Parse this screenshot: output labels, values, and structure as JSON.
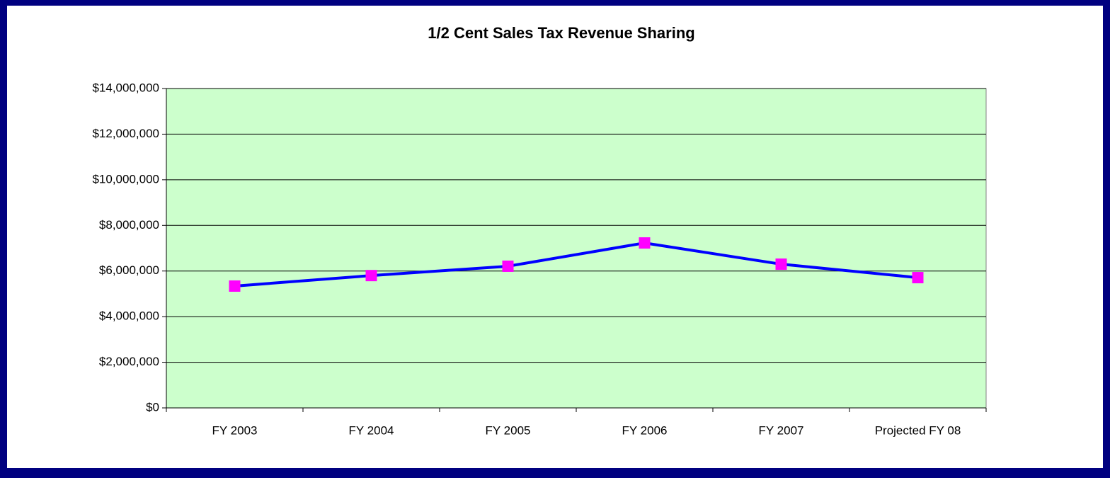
{
  "chart_data": {
    "type": "line",
    "title": "1/2 Cent Sales Tax Revenue Sharing",
    "categories": [
      "FY 2003",
      "FY 2004",
      "FY 2005",
      "FY 2006",
      "FY 2007",
      "Projected FY 08"
    ],
    "series": [
      {
        "color": "#0000ff",
        "marker_color": "#ff00ff",
        "values": [
          5340000,
          5800000,
          6210000,
          7230000,
          6300000,
          5710000
        ]
      }
    ],
    "ylim": [
      0,
      14000000
    ],
    "yticks": [
      {
        "value": 0,
        "label": "$0"
      },
      {
        "value": 2000000,
        "label": "$2,000,000"
      },
      {
        "value": 4000000,
        "label": "$4,000,000"
      },
      {
        "value": 6000000,
        "label": "$6,000,000"
      },
      {
        "value": 8000000,
        "label": "$8,000,000"
      },
      {
        "value": 10000000,
        "label": "$10,000,000"
      },
      {
        "value": 12000000,
        "label": "$12,000,000"
      },
      {
        "value": 14000000,
        "label": "$14,000,000"
      }
    ],
    "grid": true,
    "plot_background": "#ccffcc"
  }
}
